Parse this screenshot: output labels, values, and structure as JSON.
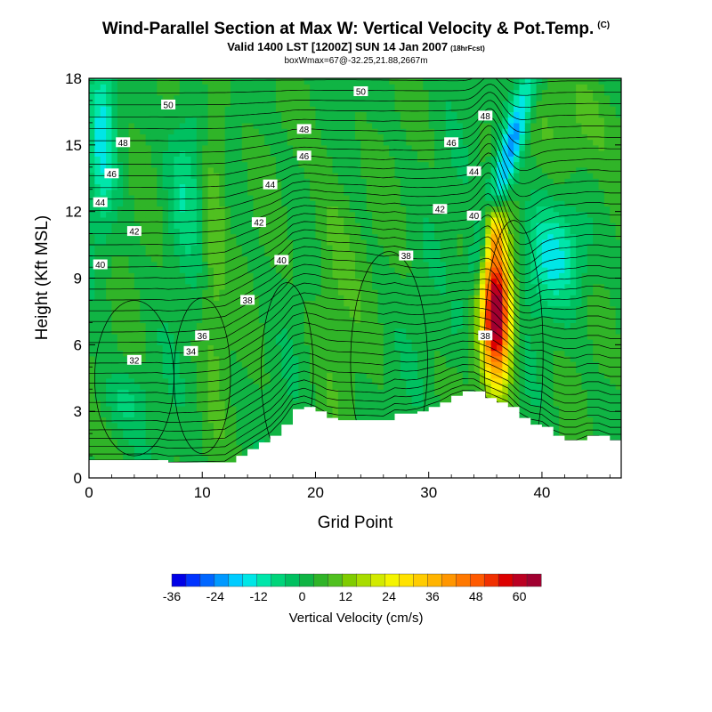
{
  "header": {
    "title": "Wind-Parallel Section at Max W: Vertical Velocity & Pot.Temp.",
    "copyright": "(C)",
    "valid": "Valid 1400 LST [1200Z] SUN 14 Jan 2007",
    "forecast": "(18hrFcst)",
    "box": "boxWmax=67@-32.25,21.88,2667m"
  },
  "chart_data": {
    "type": "heatmap",
    "title": "Wind-Parallel Section at Max W: Vertical Velocity & Pot.Temp.",
    "xlabel": "Grid Point",
    "ylabel": "Height (Kft MSL)",
    "xlim": [
      0,
      47
    ],
    "ylim": [
      0,
      18
    ],
    "x_ticks": [
      0,
      10,
      20,
      30,
      40
    ],
    "y_ticks": [
      0,
      3,
      6,
      9,
      12,
      15,
      18
    ],
    "colorbar": {
      "label": "Vertical Velocity (cm/s)",
      "min": -36,
      "max": 66,
      "step": 4,
      "tick_labels": [
        "-36",
        "-24",
        "-12",
        "0",
        "12",
        "24",
        "36",
        "48",
        "60"
      ],
      "colors": [
        "#0000e6",
        "#0033ff",
        "#0066ff",
        "#0099ff",
        "#00ccff",
        "#00e6e6",
        "#00e6aa",
        "#00d47a",
        "#00c060",
        "#10b444",
        "#30b428",
        "#50c020",
        "#80cc00",
        "#a8dc00",
        "#d2ea00",
        "#f4f400",
        "#ffe200",
        "#ffcc00",
        "#ffb400",
        "#ff9600",
        "#ff7800",
        "#ff5a00",
        "#f03000",
        "#dc0000",
        "#bb0022",
        "#a00030"
      ]
    },
    "terrain_kft": [
      [
        0,
        0.8
      ],
      [
        1,
        0.8
      ],
      [
        2,
        0.8
      ],
      [
        3,
        0.8
      ],
      [
        4,
        0.8
      ],
      [
        5,
        0.8
      ],
      [
        6,
        0.8
      ],
      [
        7,
        0.7
      ],
      [
        8,
        0.7
      ],
      [
        9,
        0.7
      ],
      [
        10,
        0.7
      ],
      [
        11,
        0.7
      ],
      [
        12,
        0.7
      ],
      [
        13,
        1.0
      ],
      [
        14,
        1.3
      ],
      [
        15,
        1.6
      ],
      [
        16,
        1.9
      ],
      [
        17,
        2.4
      ],
      [
        18,
        3.1
      ],
      [
        19,
        3.2
      ],
      [
        20,
        3.0
      ],
      [
        21,
        2.7
      ],
      [
        22,
        2.6
      ],
      [
        23,
        2.6
      ],
      [
        24,
        2.6
      ],
      [
        25,
        2.6
      ],
      [
        26,
        2.6
      ],
      [
        27,
        2.9
      ],
      [
        28,
        2.9
      ],
      [
        29,
        3.0
      ],
      [
        30,
        3.2
      ],
      [
        31,
        3.4
      ],
      [
        32,
        3.7
      ],
      [
        33,
        3.9
      ],
      [
        34,
        3.9
      ],
      [
        35,
        3.6
      ],
      [
        36,
        3.4
      ],
      [
        37,
        3.2
      ],
      [
        38,
        2.7
      ],
      [
        39,
        2.4
      ],
      [
        40,
        2.3
      ],
      [
        41,
        1.9
      ],
      [
        42,
        1.7
      ],
      [
        43,
        1.7
      ],
      [
        44,
        1.9
      ],
      [
        45,
        1.9
      ],
      [
        46,
        1.7
      ],
      [
        47,
        1.7
      ]
    ],
    "updraft_max": {
      "x": 36,
      "height_kft": 7.5,
      "value_cms": 67
    },
    "isentrope_labels": [
      {
        "text": "50",
        "x": 7,
        "y": 16.8
      },
      {
        "text": "50",
        "x": 24,
        "y": 17.4
      },
      {
        "text": "48",
        "x": 3,
        "y": 15.1
      },
      {
        "text": "48",
        "x": 19,
        "y": 15.7
      },
      {
        "text": "48",
        "x": 35,
        "y": 16.3
      },
      {
        "text": "46",
        "x": 2,
        "y": 13.7
      },
      {
        "text": "46",
        "x": 19,
        "y": 14.5
      },
      {
        "text": "46",
        "x": 32,
        "y": 15.1
      },
      {
        "text": "44",
        "x": 1,
        "y": 12.4
      },
      {
        "text": "44",
        "x": 16,
        "y": 13.2
      },
      {
        "text": "44",
        "x": 34,
        "y": 13.8
      },
      {
        "text": "42",
        "x": 4,
        "y": 11.1
      },
      {
        "text": "42",
        "x": 15,
        "y": 11.5
      },
      {
        "text": "42",
        "x": 31,
        "y": 12.1
      },
      {
        "text": "40",
        "x": 1,
        "y": 9.6
      },
      {
        "text": "40",
        "x": 17,
        "y": 9.8
      },
      {
        "text": "40",
        "x": 34,
        "y": 11.8
      },
      {
        "text": "38",
        "x": 14,
        "y": 8.0
      },
      {
        "text": "38",
        "x": 28,
        "y": 10.0
      },
      {
        "text": "38",
        "x": 35,
        "y": 6.4
      },
      {
        "text": "36",
        "x": 10,
        "y": 6.4
      },
      {
        "text": "34",
        "x": 9,
        "y": 5.7
      },
      {
        "text": "32",
        "x": 4,
        "y": 5.3
      }
    ]
  }
}
